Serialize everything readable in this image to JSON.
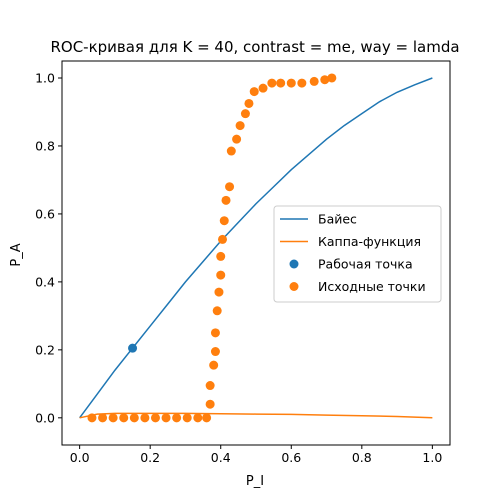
{
  "chart_data": {
    "type": "line+scatter",
    "title": "ROC-кривая для K = 40, contrast = me, way = lamda",
    "xlabel": "P_I",
    "ylabel": "P_A",
    "xlim": [
      -0.05,
      1.05
    ],
    "ylim": [
      -0.08,
      1.05
    ],
    "xticks": [
      "0.0",
      "0.2",
      "0.4",
      "0.6",
      "0.8",
      "1.0"
    ],
    "yticks": [
      "0.0",
      "0.2",
      "0.4",
      "0.6",
      "0.8",
      "1.0"
    ],
    "grid": false,
    "legend_position": "center-right",
    "series": [
      {
        "name": "Байес",
        "kind": "line",
        "color": "#1f77b4",
        "points": [
          [
            0.0,
            0.0
          ],
          [
            0.05,
            0.07
          ],
          [
            0.1,
            0.14
          ],
          [
            0.15,
            0.205
          ],
          [
            0.2,
            0.27
          ],
          [
            0.25,
            0.335
          ],
          [
            0.3,
            0.4
          ],
          [
            0.35,
            0.46
          ],
          [
            0.4,
            0.52
          ],
          [
            0.45,
            0.575
          ],
          [
            0.5,
            0.63
          ],
          [
            0.55,
            0.68
          ],
          [
            0.6,
            0.73
          ],
          [
            0.65,
            0.775
          ],
          [
            0.7,
            0.82
          ],
          [
            0.75,
            0.86
          ],
          [
            0.8,
            0.895
          ],
          [
            0.85,
            0.93
          ],
          [
            0.9,
            0.958
          ],
          [
            0.95,
            0.98
          ],
          [
            1.0,
            1.0
          ]
        ]
      },
      {
        "name": "Каппа-функция",
        "kind": "line",
        "color": "#ff7f0e",
        "points": [
          [
            0.0,
            0.0
          ],
          [
            0.05,
            0.011
          ],
          [
            0.1,
            0.013
          ],
          [
            0.2,
            0.013
          ],
          [
            0.3,
            0.013
          ],
          [
            0.4,
            0.012
          ],
          [
            0.5,
            0.011
          ],
          [
            0.6,
            0.01
          ],
          [
            0.7,
            0.008
          ],
          [
            0.8,
            0.006
          ],
          [
            0.9,
            0.004
          ],
          [
            1.0,
            0.0
          ]
        ]
      },
      {
        "name": "Рабочая точка",
        "kind": "scatter",
        "color": "#1f77b4",
        "points": [
          [
            0.15,
            0.205
          ]
        ]
      },
      {
        "name": "Исходные точки",
        "kind": "scatter",
        "color": "#ff7f0e",
        "points": [
          [
            0.035,
            0.0
          ],
          [
            0.065,
            0.0
          ],
          [
            0.095,
            0.0
          ],
          [
            0.125,
            0.0
          ],
          [
            0.155,
            0.0
          ],
          [
            0.185,
            0.0
          ],
          [
            0.215,
            0.0
          ],
          [
            0.245,
            0.0
          ],
          [
            0.275,
            0.0
          ],
          [
            0.305,
            0.0
          ],
          [
            0.335,
            0.0
          ],
          [
            0.36,
            0.0
          ],
          [
            0.37,
            0.04
          ],
          [
            0.37,
            0.095
          ],
          [
            0.38,
            0.155
          ],
          [
            0.385,
            0.195
          ],
          [
            0.385,
            0.25
          ],
          [
            0.39,
            0.315
          ],
          [
            0.395,
            0.37
          ],
          [
            0.4,
            0.42
          ],
          [
            0.4,
            0.475
          ],
          [
            0.405,
            0.525
          ],
          [
            0.41,
            0.58
          ],
          [
            0.415,
            0.64
          ],
          [
            0.425,
            0.68
          ],
          [
            0.43,
            0.785
          ],
          [
            0.445,
            0.82
          ],
          [
            0.455,
            0.86
          ],
          [
            0.47,
            0.895
          ],
          [
            0.48,
            0.925
          ],
          [
            0.495,
            0.96
          ],
          [
            0.52,
            0.97
          ],
          [
            0.545,
            0.985
          ],
          [
            0.57,
            0.985
          ],
          [
            0.6,
            0.985
          ],
          [
            0.63,
            0.985
          ],
          [
            0.665,
            0.99
          ],
          [
            0.695,
            0.995
          ],
          [
            0.715,
            1.0
          ]
        ]
      }
    ]
  }
}
